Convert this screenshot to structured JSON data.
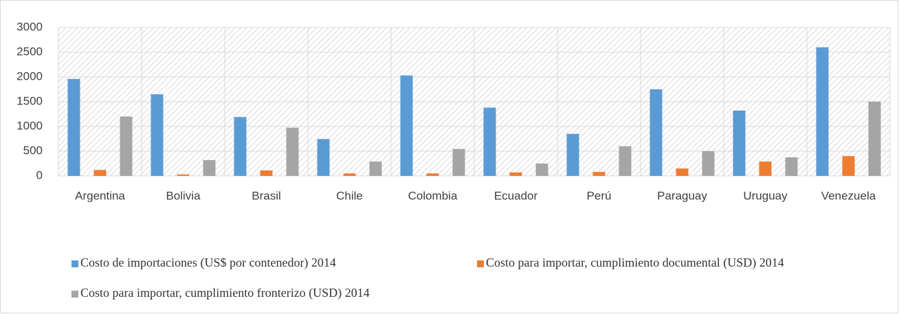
{
  "chart_data": {
    "type": "bar",
    "categories": [
      "Argentina",
      "Bolivia",
      "Brasil",
      "Chile",
      "Colombia",
      "Ecuador",
      "Perú",
      "Paraguay",
      "Uruguay",
      "Venezuela"
    ],
    "series": [
      {
        "name": "Costo de importaciones (US$ por contenedor) 2014",
        "color": "#5b9bd5",
        "values": [
          1960,
          1650,
          1190,
          745,
          2030,
          1380,
          850,
          1750,
          1320,
          2600
        ]
      },
      {
        "name": "Costo para importar, cumplimiento documental (USD) 2014",
        "color": "#ed7d31",
        "values": [
          120,
          30,
          110,
          50,
          50,
          70,
          80,
          150,
          290,
          400
        ]
      },
      {
        "name": "Costo para importar, cumplimiento fronterizo (USD) 2014",
        "color": "#a5a5a5",
        "values": [
          1200,
          320,
          975,
          290,
          545,
          250,
          600,
          500,
          375,
          1500
        ]
      }
    ],
    "ylim": [
      0,
      3000
    ],
    "yticks": [
      0,
      500,
      1000,
      1500,
      2000,
      2500,
      3000
    ],
    "grid": true
  }
}
